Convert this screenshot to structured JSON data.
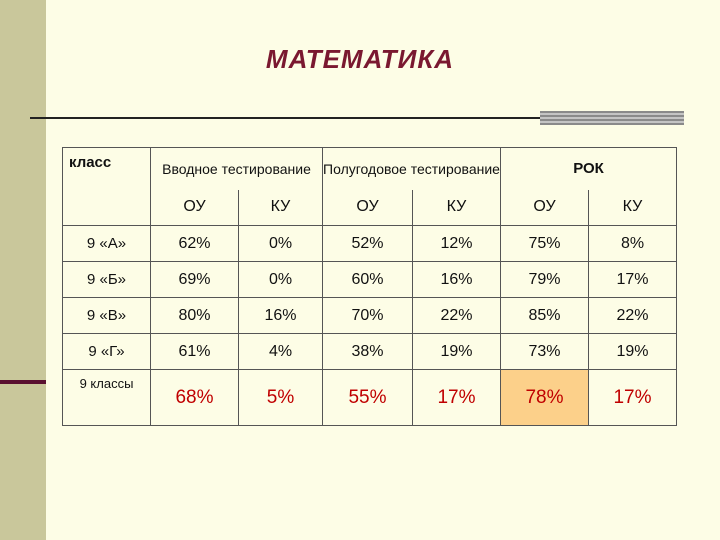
{
  "title": "МАТЕМАТИКА",
  "table": {
    "corner_label": "класс",
    "groups": [
      {
        "label": "Вводное тестирование"
      },
      {
        "label": "Полугодовое тестирование"
      },
      {
        "label": "РОК"
      }
    ],
    "subheaders": [
      "ОУ",
      "КУ",
      "ОУ",
      "КУ",
      "ОУ",
      "КУ"
    ],
    "rows": [
      {
        "label": "9 «А»",
        "values": [
          "62%",
          "0%",
          "52%",
          "12%",
          "75%",
          "8%"
        ]
      },
      {
        "label": "9 «Б»",
        "values": [
          "69%",
          "0%",
          "60%",
          "16%",
          "79%",
          "17%"
        ]
      },
      {
        "label": "9 «В»",
        "values": [
          "80%",
          "16%",
          "70%",
          "22%",
          "85%",
          "22%"
        ]
      },
      {
        "label": "9 «Г»",
        "values": [
          "61%",
          "4%",
          "38%",
          "19%",
          "73%",
          "19%"
        ]
      }
    ],
    "summary": {
      "label": "9 классы",
      "values": [
        "68%",
        "5%",
        "55%",
        "17%",
        "78%",
        "17%"
      ]
    }
  },
  "colors": {
    "title": "#7a1830",
    "summary_text": "#c00000",
    "highlight_bg": "#fcd08a"
  }
}
